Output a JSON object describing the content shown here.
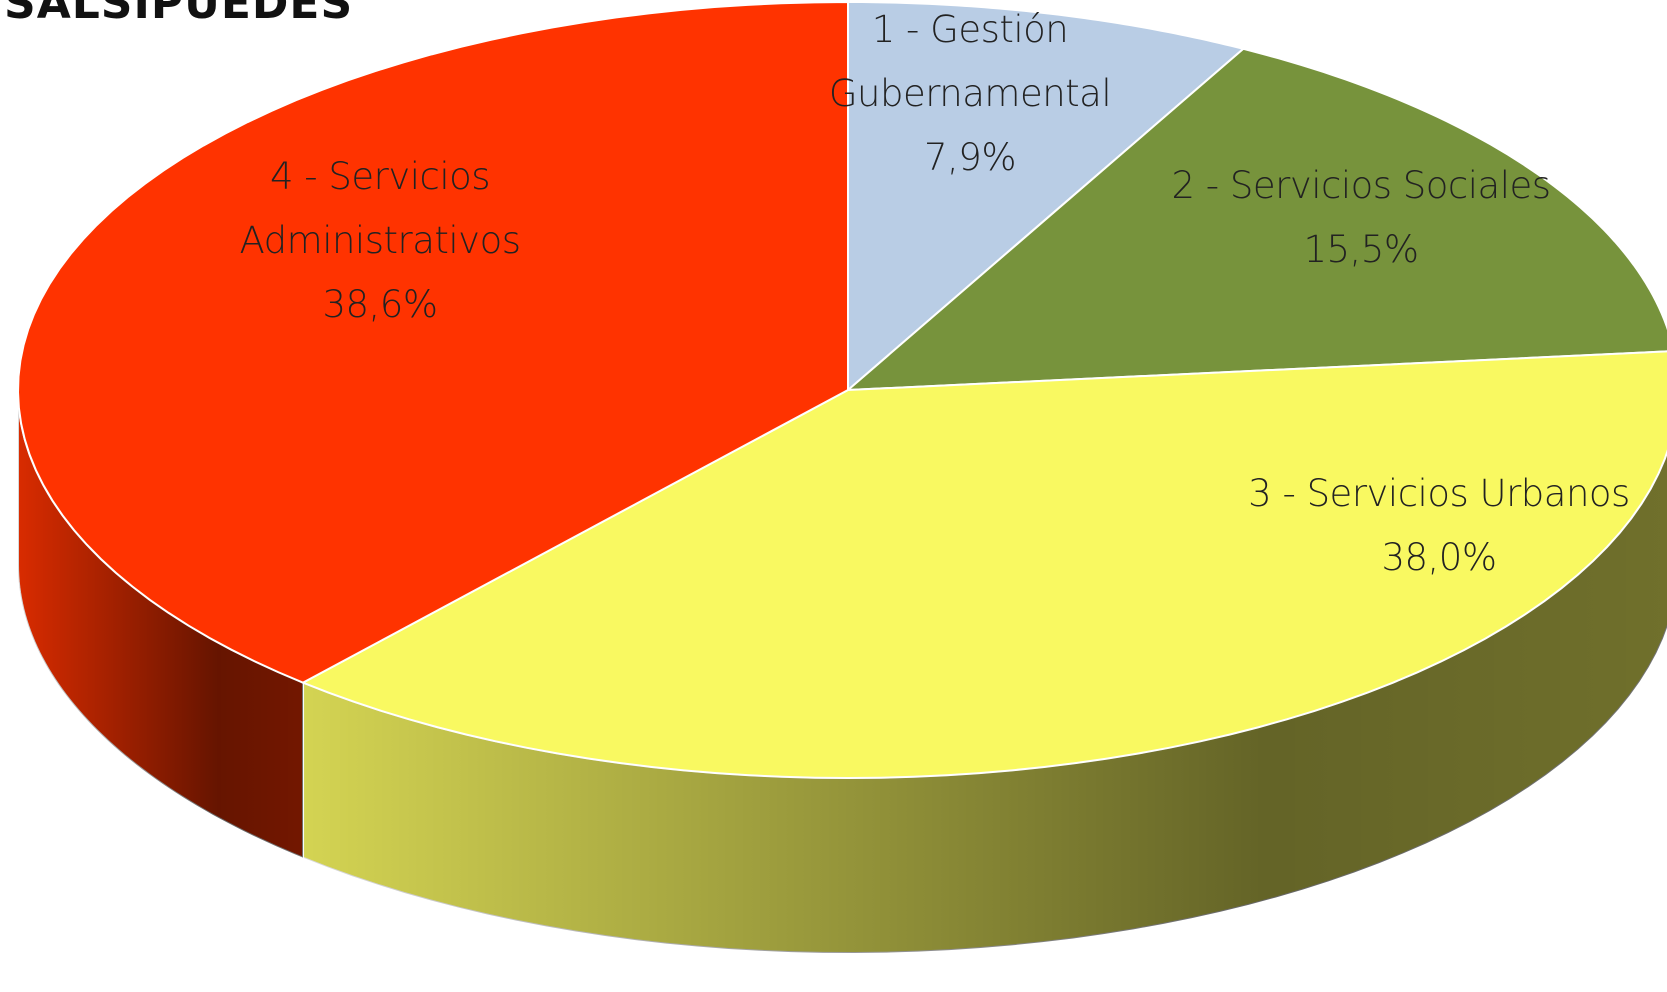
{
  "logo": "SALSIPUEDES",
  "chart_data": {
    "type": "pie3d",
    "categories": [
      "1 - Gestión Gubernamental",
      "2 - Servicios Sociales",
      "3 - Servicios Urbanos",
      "4 - Servicios Administrativos"
    ],
    "values": [
      7.9,
      15.5,
      38.0,
      38.6
    ],
    "value_labels": [
      "7,9%",
      "15,5%",
      "38,0%",
      "38,6%"
    ],
    "colors": [
      "#b9cde5",
      "#77933c",
      "#f9f961",
      "#ff3300"
    ]
  }
}
